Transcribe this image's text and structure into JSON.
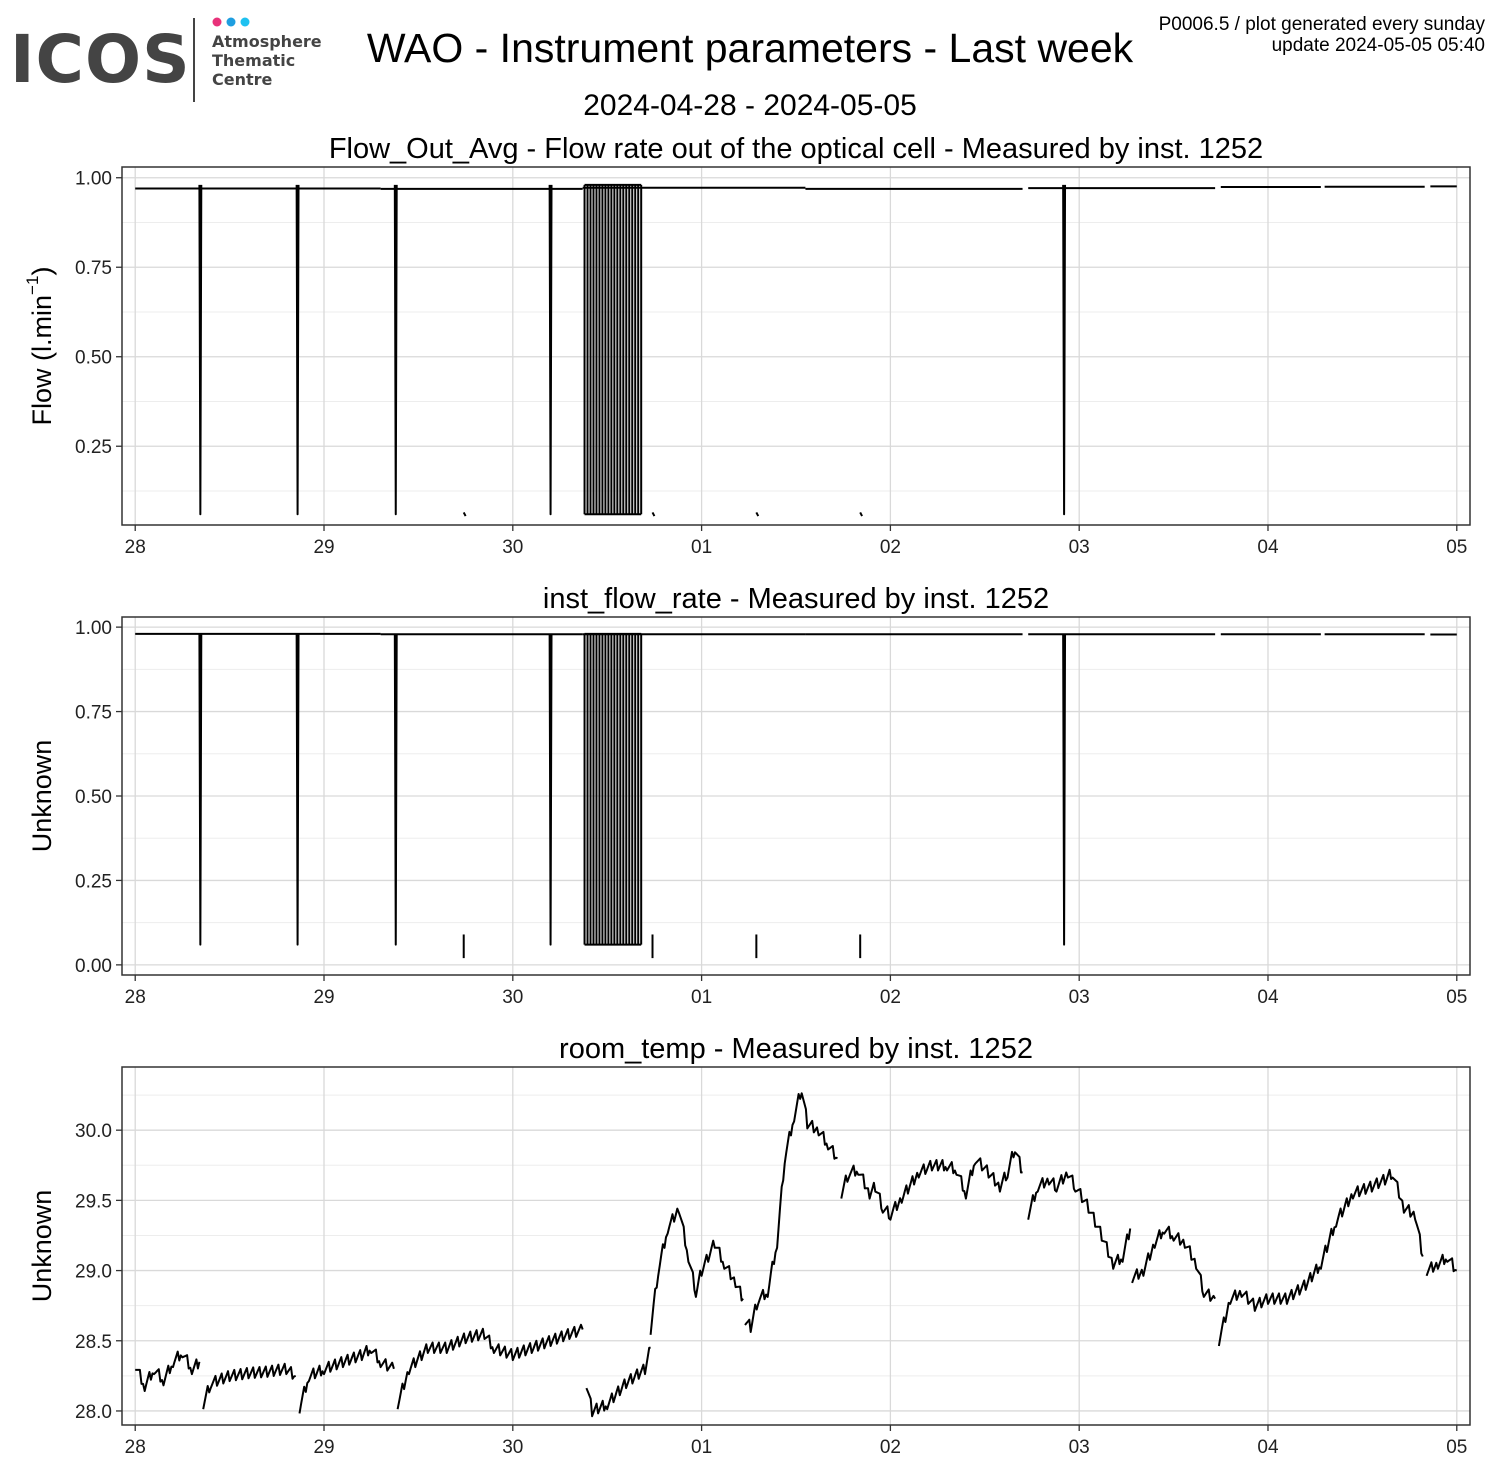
{
  "header": {
    "logo_text": "ICOS",
    "logo_sub": [
      "Atmosphere",
      "Thematic",
      "Centre"
    ],
    "title": "WAO - Instrument parameters - Last week",
    "subtitle": "2024-04-28 - 2024-05-05",
    "info_line1": "P0006.5 / plot generated every sunday",
    "info_line2": "update  2024-05-05 05:40"
  },
  "colors": {
    "line": "#000000",
    "grid_major": "#d9d9d9",
    "grid_minor": "#ededed",
    "panel_border": "#333333",
    "logo_text": "#444444",
    "logo_dot_pink": "#e8327a",
    "logo_dot_blue": "#1e9ee0",
    "logo_dot_cyan": "#1ec1f0"
  },
  "chart_data": [
    {
      "type": "line",
      "title": "Flow_Out_Avg - Flow rate out of the optical cell - Measured by inst. 1252",
      "ylabel_text": "Flow (l.min",
      "ylabel_sup": "−1",
      "ylabel_close": ")",
      "x_ticks": [
        "28",
        "29",
        "30",
        "01",
        "02",
        "03",
        "04",
        "05"
      ],
      "y_ticks": [
        "1.00",
        "0.75",
        "0.50",
        "0.25"
      ],
      "y_tick_values": [
        1.0,
        0.75,
        0.5,
        0.25
      ],
      "ylim": [
        0.03,
        1.03
      ],
      "xlim": [
        -0.07,
        7.07
      ],
      "grid": true,
      "base_segments": [
        [
          0,
          1.3,
          0.97
        ],
        [
          1.3,
          2.37,
          0.969
        ],
        [
          2.37,
          3.55,
          0.972
        ],
        [
          3.55,
          4.7,
          0.969
        ],
        [
          4.73,
          5.72,
          0.971
        ],
        [
          5.75,
          6.28,
          0.974
        ],
        [
          6.3,
          6.83,
          0.975
        ],
        [
          6.86,
          7.0,
          0.976
        ]
      ],
      "dips": [
        0.345,
        0.86,
        1.38,
        2.2,
        4.92
      ],
      "dip_min": 0.06,
      "dense_range": [
        2.38,
        2.68
      ],
      "dense_count": 20,
      "ticks_low": [
        1.74,
        2.74,
        3.29,
        3.84
      ],
      "ticks_low_value": 0.06
    },
    {
      "type": "line",
      "title": "inst_flow_rate - Measured by inst. 1252",
      "ylabel_text": "Unknown",
      "x_ticks": [
        "28",
        "29",
        "30",
        "01",
        "02",
        "03",
        "04",
        "05"
      ],
      "y_ticks": [
        "1.00",
        "0.75",
        "0.50",
        "0.25",
        "0.00"
      ],
      "y_tick_values": [
        1.0,
        0.75,
        0.5,
        0.25,
        0.0
      ],
      "ylim": [
        -0.03,
        1.03
      ],
      "xlim": [
        -0.07,
        7.07
      ],
      "grid": true,
      "base_segments": [
        [
          0,
          1.3,
          0.98
        ],
        [
          1.3,
          2.37,
          0.979
        ],
        [
          2.37,
          3.55,
          0.979
        ],
        [
          3.55,
          4.7,
          0.979
        ],
        [
          4.73,
          5.72,
          0.979
        ],
        [
          5.75,
          6.28,
          0.979
        ],
        [
          6.3,
          6.83,
          0.979
        ],
        [
          6.86,
          7.0,
          0.978
        ]
      ],
      "dips": [
        0.345,
        0.86,
        1.38,
        2.2,
        4.92
      ],
      "dip_min": 0.06,
      "dense_range": [
        2.38,
        2.68
      ],
      "dense_count": 20,
      "ticks_low": [
        1.74,
        2.74,
        3.29,
        3.84
      ],
      "ticks_low_value": 0.02,
      "ticks_high_value": 0.09
    },
    {
      "type": "line",
      "title": "room_temp - Measured by inst. 1252",
      "ylabel_text": "Unknown",
      "x_ticks": [
        "28",
        "29",
        "30",
        "01",
        "02",
        "03",
        "04",
        "05"
      ],
      "y_ticks": [
        "30.0",
        "29.5",
        "29.0",
        "28.5",
        "28.0"
      ],
      "y_tick_values": [
        30.0,
        29.5,
        29.0,
        28.5,
        28.0
      ],
      "ylim": [
        27.9,
        30.45
      ],
      "xlim": [
        -0.07,
        7.07
      ],
      "grid": true,
      "segments": [
        [
          [
            0,
            28.33
          ],
          [
            0.05,
            28.18
          ],
          [
            0.1,
            28.3
          ],
          [
            0.15,
            28.22
          ],
          [
            0.2,
            28.35
          ],
          [
            0.25,
            28.42
          ],
          [
            0.3,
            28.3
          ],
          [
            0.34,
            28.35
          ]
        ],
        [
          [
            0.36,
            28.05
          ],
          [
            0.4,
            28.2
          ],
          [
            0.5,
            28.25
          ],
          [
            0.6,
            28.27
          ],
          [
            0.7,
            28.28
          ],
          [
            0.8,
            28.3
          ],
          [
            0.85,
            28.25
          ]
        ],
        [
          [
            0.87,
            28.02
          ],
          [
            0.92,
            28.25
          ],
          [
            1.0,
            28.3
          ],
          [
            1.1,
            28.35
          ],
          [
            1.2,
            28.4
          ],
          [
            1.25,
            28.45
          ],
          [
            1.3,
            28.35
          ],
          [
            1.37,
            28.3
          ]
        ],
        [
          [
            1.39,
            28.05
          ],
          [
            1.45,
            28.3
          ],
          [
            1.55,
            28.45
          ],
          [
            1.65,
            28.45
          ],
          [
            1.75,
            28.52
          ],
          [
            1.85,
            28.55
          ],
          [
            1.9,
            28.45
          ],
          [
            2.0,
            28.4
          ],
          [
            2.1,
            28.45
          ],
          [
            2.2,
            28.5
          ],
          [
            2.3,
            28.55
          ],
          [
            2.37,
            28.58
          ]
        ],
        [
          [
            2.39,
            28.2
          ],
          [
            2.42,
            28.0
          ],
          [
            2.5,
            28.05
          ],
          [
            2.6,
            28.2
          ],
          [
            2.7,
            28.3
          ],
          [
            2.73,
            28.45
          ]
        ],
        [
          [
            2.73,
            28.58
          ],
          [
            2.77,
            29.0
          ],
          [
            2.82,
            29.3
          ],
          [
            2.88,
            29.45
          ],
          [
            2.93,
            29.1
          ],
          [
            2.97,
            28.85
          ],
          [
            3.0,
            29.0
          ],
          [
            3.07,
            29.2
          ],
          [
            3.12,
            29.05
          ],
          [
            3.18,
            28.92
          ],
          [
            3.22,
            28.8
          ]
        ],
        [
          [
            3.23,
            28.65
          ],
          [
            3.26,
            28.6
          ],
          [
            3.3,
            28.8
          ],
          [
            3.35,
            28.85
          ],
          [
            3.4,
            29.2
          ],
          [
            3.44,
            29.8
          ],
          [
            3.49,
            30.1
          ],
          [
            3.53,
            30.3
          ],
          [
            3.56,
            30.05
          ],
          [
            3.62,
            30.0
          ],
          [
            3.67,
            29.9
          ],
          [
            3.72,
            29.8
          ]
        ],
        [
          [
            3.74,
            29.55
          ],
          [
            3.78,
            29.7
          ],
          [
            3.83,
            29.72
          ],
          [
            3.89,
            29.55
          ],
          [
            3.92,
            29.6
          ],
          [
            3.96,
            29.45
          ],
          [
            4.0,
            29.4
          ],
          [
            4.06,
            29.52
          ],
          [
            4.15,
            29.7
          ],
          [
            4.22,
            29.75
          ],
          [
            4.3,
            29.75
          ],
          [
            4.35,
            29.72
          ],
          [
            4.4,
            29.55
          ],
          [
            4.45,
            29.8
          ],
          [
            4.52,
            29.7
          ],
          [
            4.58,
            29.6
          ],
          [
            4.62,
            29.7
          ],
          [
            4.66,
            29.88
          ],
          [
            4.7,
            29.7
          ]
        ],
        [
          [
            4.73,
            29.4
          ],
          [
            4.78,
            29.6
          ],
          [
            4.84,
            29.65
          ],
          [
            4.88,
            29.6
          ],
          [
            4.94,
            29.7
          ],
          [
            4.98,
            29.6
          ],
          [
            5.05,
            29.45
          ],
          [
            5.12,
            29.25
          ],
          [
            5.18,
            29.05
          ],
          [
            5.23,
            29.1
          ],
          [
            5.27,
            29.3
          ]
        ],
        [
          [
            5.28,
            28.95
          ],
          [
            5.34,
            29.0
          ],
          [
            5.4,
            29.2
          ],
          [
            5.45,
            29.3
          ],
          [
            5.5,
            29.25
          ],
          [
            5.56,
            29.2
          ],
          [
            5.62,
            29.05
          ],
          [
            5.66,
            28.85
          ],
          [
            5.72,
            28.8
          ]
        ],
        [
          [
            5.74,
            28.5
          ],
          [
            5.8,
            28.8
          ],
          [
            5.86,
            28.85
          ],
          [
            5.93,
            28.75
          ],
          [
            6.0,
            28.8
          ],
          [
            6.1,
            28.8
          ],
          [
            6.2,
            28.9
          ],
          [
            6.28,
            29.05
          ],
          [
            6.36,
            29.35
          ],
          [
            6.45,
            29.55
          ],
          [
            6.55,
            29.6
          ],
          [
            6.62,
            29.65
          ],
          [
            6.66,
            29.7
          ],
          [
            6.72,
            29.45
          ],
          [
            6.78,
            29.4
          ],
          [
            6.82,
            29.1
          ]
        ],
        [
          [
            6.84,
            29.0
          ],
          [
            6.9,
            29.05
          ],
          [
            6.95,
            29.1
          ],
          [
            7.0,
            29.0
          ]
        ]
      ]
    }
  ]
}
